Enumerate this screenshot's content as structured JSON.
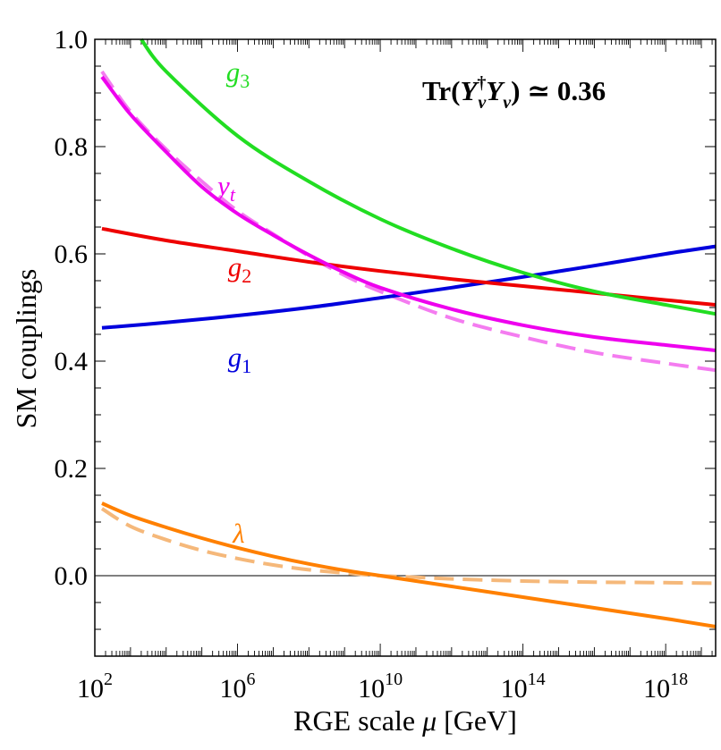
{
  "chart_data": {
    "type": "line",
    "title": "",
    "annotation": {
      "text": "Tr(Y_ν† Y_ν) ≃ 0.36",
      "prefix": "Tr(",
      "sym1": "Y",
      "sym1_sup": "†",
      "sym1_sub": "ν",
      "sym2": "Y",
      "sym2_sub": "ν",
      "suffix": ") ≃ 0.36"
    },
    "xlabel": {
      "prefix": "RGE scale ",
      "symbol": "μ",
      "suffix": " [GeV]"
    },
    "ylabel": "SM couplings",
    "x_scale": "log10",
    "xlim_log10": [
      2.0,
      19.4
    ],
    "ylim": [
      -0.15,
      1.0
    ],
    "x_ticks": [
      {
        "base": "10",
        "exp": "2",
        "log10": 2
      },
      {
        "base": "10",
        "exp": "6",
        "log10": 6
      },
      {
        "base": "10",
        "exp": "10",
        "log10": 10
      },
      {
        "base": "10",
        "exp": "14",
        "log10": 14
      },
      {
        "base": "10",
        "exp": "18",
        "log10": 18
      }
    ],
    "y_ticks": [
      {
        "label": "0.0",
        "value": 0.0
      },
      {
        "label": "0.2",
        "value": 0.2
      },
      {
        "label": "0.4",
        "value": 0.4
      },
      {
        "label": "0.6",
        "value": 0.6
      },
      {
        "label": "0.8",
        "value": 0.8
      },
      {
        "label": "1.0",
        "value": 1.0
      }
    ],
    "series": [
      {
        "name": "g3",
        "base": "g",
        "sub": "3",
        "color": "#22dd22",
        "dashed": false,
        "x_log10": [
          3.3,
          4,
          6,
          8,
          10,
          12,
          14,
          16,
          18,
          19.4
        ],
        "y": [
          1.0,
          0.94,
          0.82,
          0.735,
          0.665,
          0.61,
          0.565,
          0.53,
          0.505,
          0.488
        ]
      },
      {
        "name": "yt",
        "base": "y",
        "sub": "t",
        "color": "#ee00ee",
        "dashed": false,
        "x_log10": [
          2.2,
          3,
          4,
          5,
          6,
          7,
          8,
          9,
          10,
          12,
          14,
          16,
          18,
          19.4
        ],
        "y": [
          0.93,
          0.86,
          0.79,
          0.725,
          0.675,
          0.635,
          0.598,
          0.565,
          0.537,
          0.497,
          0.467,
          0.445,
          0.43,
          0.42
        ]
      },
      {
        "name": "yt (dashed)",
        "base": "",
        "sub": "",
        "color": "#f47cf0",
        "dashed": true,
        "x_log10": [
          2.2,
          3,
          4,
          5,
          6,
          7,
          8,
          9,
          10,
          12,
          14,
          16,
          18,
          19.4
        ],
        "y": [
          0.94,
          0.865,
          0.795,
          0.735,
          0.68,
          0.637,
          0.596,
          0.56,
          0.53,
          0.48,
          0.445,
          0.416,
          0.396,
          0.383
        ]
      },
      {
        "name": "g2",
        "base": "g",
        "sub": "2",
        "color": "#ee0000",
        "dashed": false,
        "x_log10": [
          2.2,
          4,
          6,
          8,
          10,
          12,
          14,
          16,
          18,
          19.4
        ],
        "y": [
          0.647,
          0.625,
          0.605,
          0.585,
          0.568,
          0.553,
          0.54,
          0.527,
          0.514,
          0.505
        ]
      },
      {
        "name": "g1",
        "base": "g",
        "sub": "1",
        "color": "#0000dd",
        "dashed": false,
        "x_log10": [
          2.2,
          4,
          6,
          8,
          10,
          12,
          14,
          16,
          18,
          19.4
        ],
        "y": [
          0.462,
          0.472,
          0.485,
          0.5,
          0.518,
          0.537,
          0.557,
          0.578,
          0.6,
          0.614
        ]
      },
      {
        "name": "λ",
        "base": "λ",
        "sub": "",
        "color": "#ff8000",
        "dashed": false,
        "x_log10": [
          2.2,
          3,
          4,
          5,
          6,
          7,
          8,
          9,
          10,
          11,
          12,
          14,
          16,
          18,
          19.4
        ],
        "y": [
          0.135,
          0.112,
          0.09,
          0.07,
          0.052,
          0.036,
          0.022,
          0.01,
          0.0,
          -0.01,
          -0.02,
          -0.04,
          -0.06,
          -0.08,
          -0.095
        ]
      },
      {
        "name": "λ (dashed)",
        "base": "",
        "sub": "",
        "color": "#f5b87a",
        "dashed": true,
        "x_log10": [
          2.2,
          3,
          4,
          5,
          6,
          7,
          8,
          9,
          10,
          11,
          12,
          14,
          16,
          18,
          19.4
        ],
        "y": [
          0.125,
          0.092,
          0.067,
          0.047,
          0.032,
          0.02,
          0.011,
          0.005,
          0.0,
          -0.003,
          -0.006,
          -0.01,
          -0.012,
          -0.013,
          -0.014
        ]
      }
    ],
    "zero_line": true
  }
}
